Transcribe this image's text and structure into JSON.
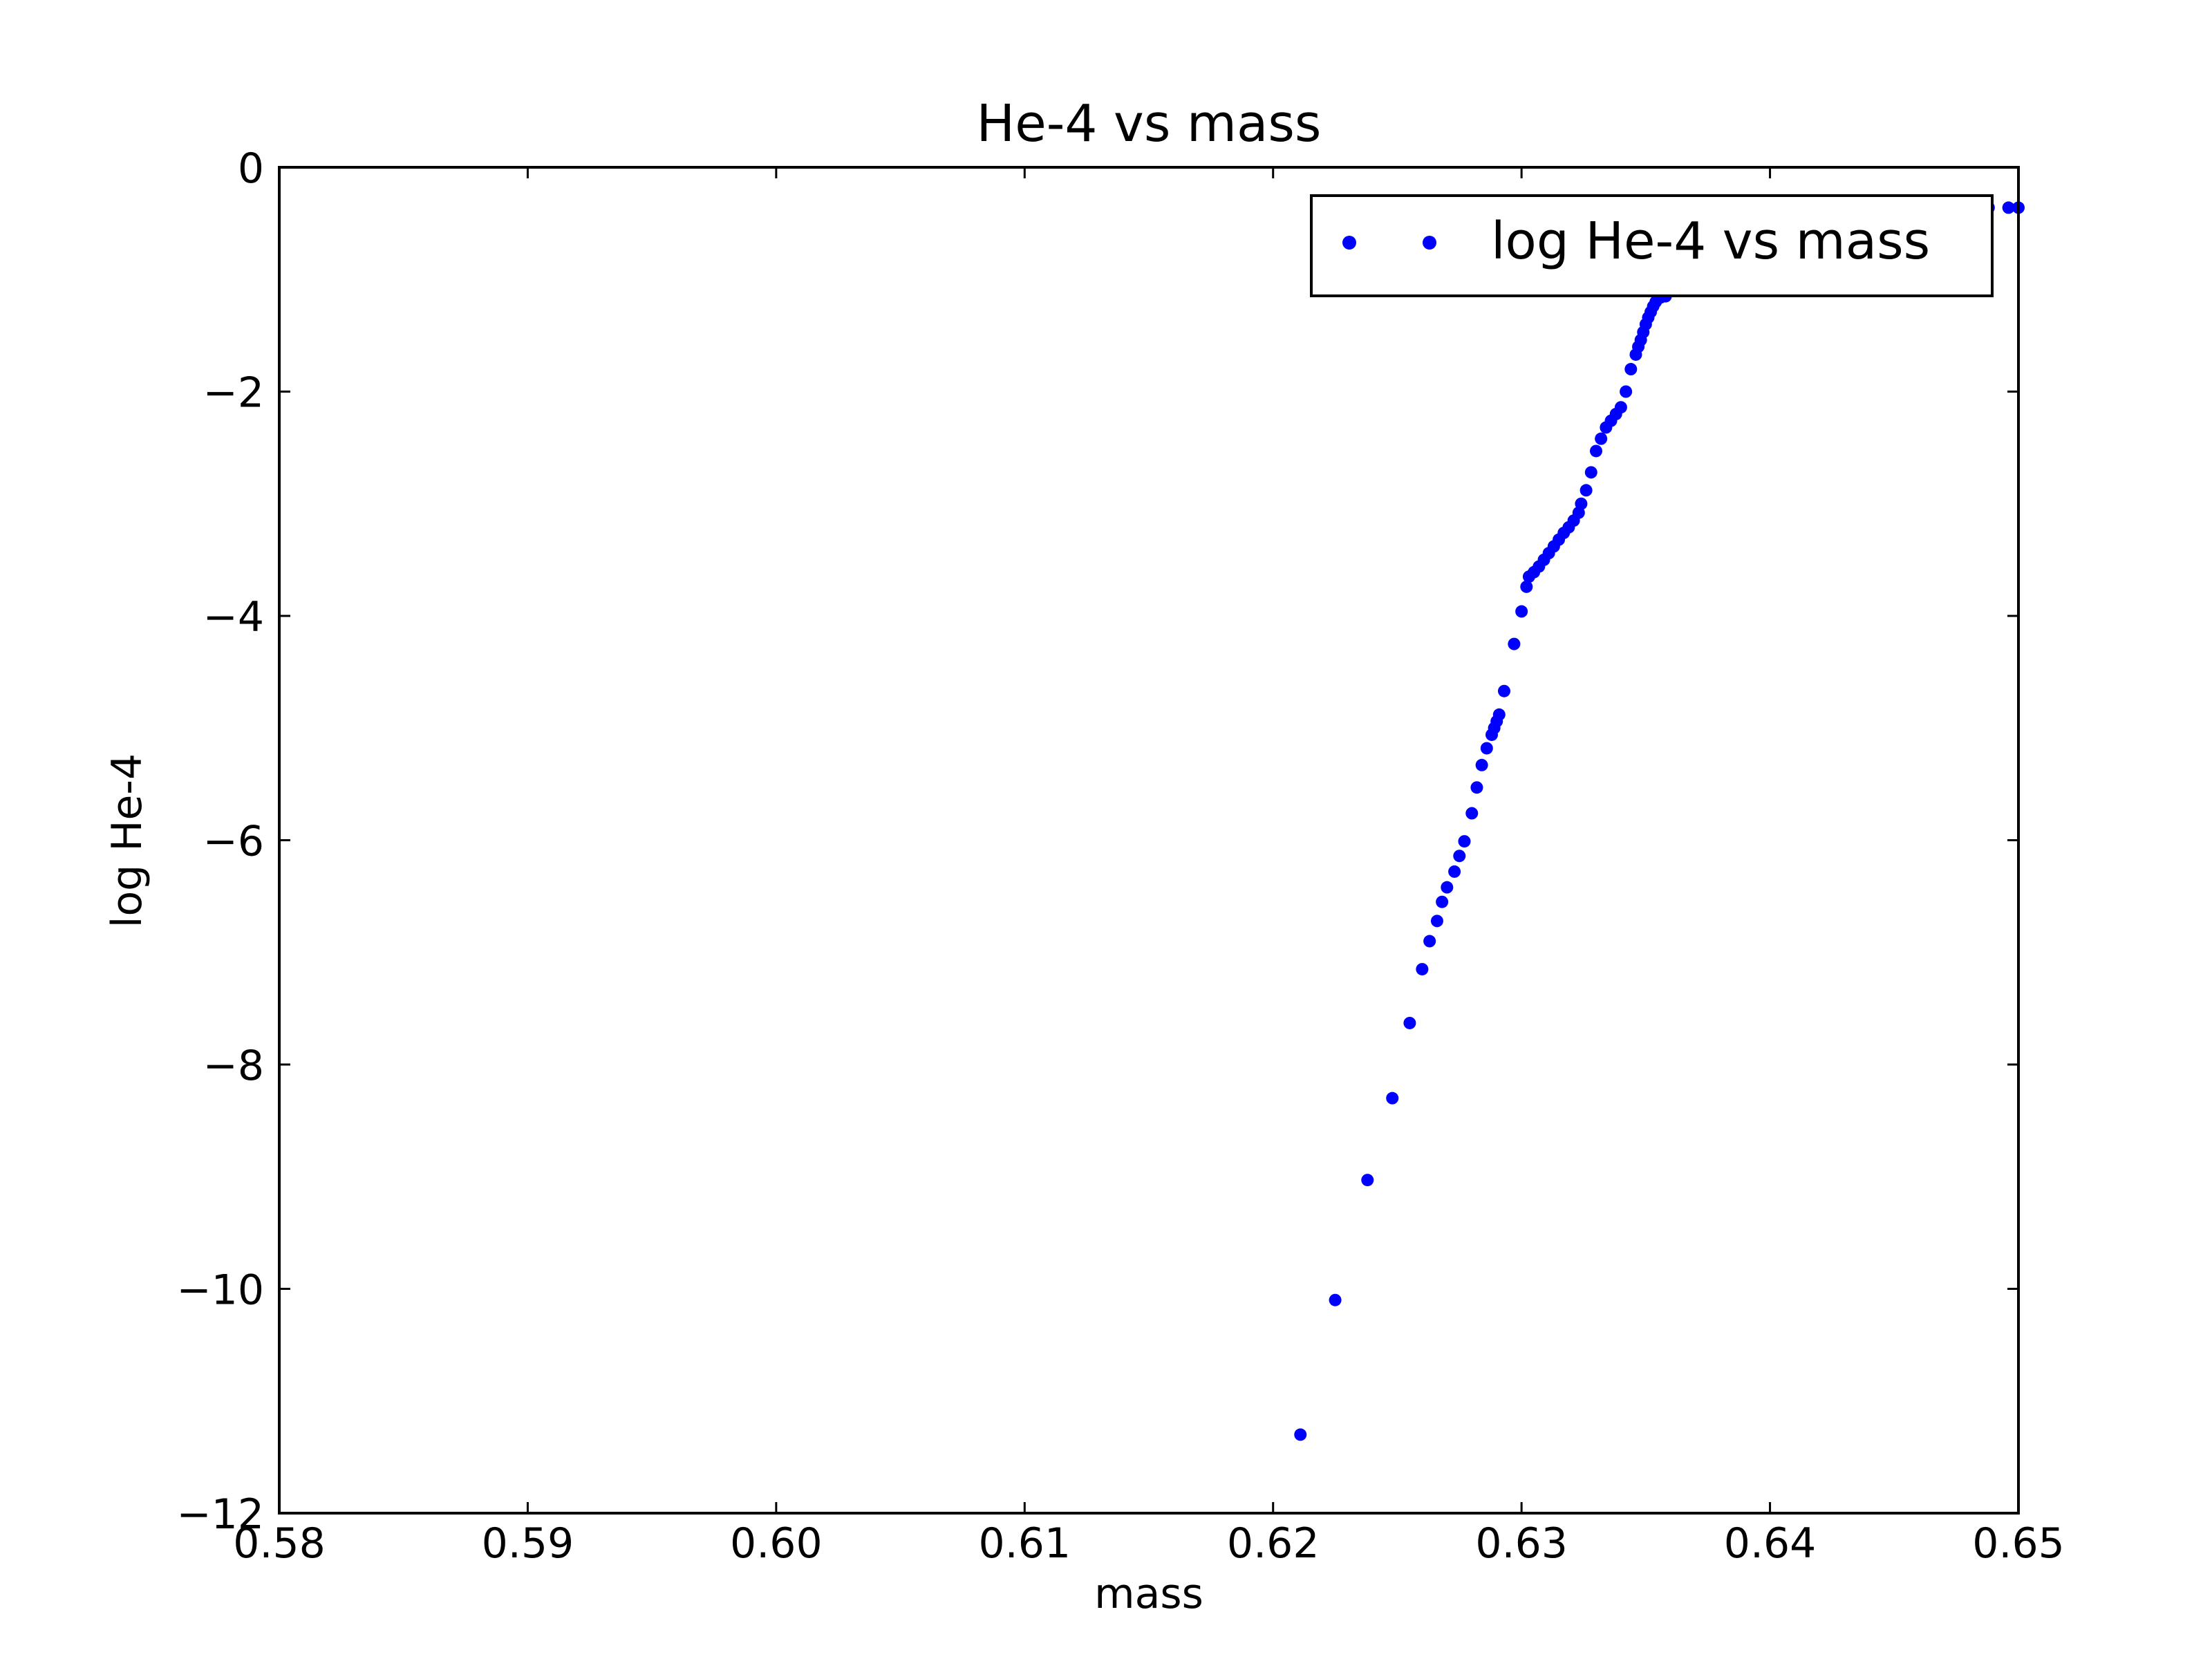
{
  "chart_data": {
    "type": "scatter",
    "title": "He-4 vs mass",
    "xlabel": "mass",
    "ylabel": "log He-4",
    "xlim": [
      0.58,
      0.65
    ],
    "ylim": [
      -12,
      0
    ],
    "xticks": [
      "0.58",
      "0.59",
      "0.60",
      "0.61",
      "0.62",
      "0.63",
      "0.64",
      "0.65"
    ],
    "yticks": [
      "0",
      "−2",
      "−4",
      "−6",
      "−8",
      "−10",
      "−12"
    ],
    "xtick_values": [
      0.58,
      0.59,
      0.6,
      0.61,
      0.62,
      0.63,
      0.64,
      0.65
    ],
    "ytick_values": [
      0,
      -2,
      -4,
      -6,
      -8,
      -10,
      -12
    ],
    "grid": false,
    "legend_position": "top-right",
    "series": [
      {
        "name": "log He-4 vs mass",
        "color": "#0000ff",
        "marker": "dot",
        "x": [
          0.6211,
          0.6225,
          0.6238,
          0.6248,
          0.6255,
          0.626,
          0.6263,
          0.6266,
          0.6268,
          0.627,
          0.6273,
          0.6275,
          0.6277,
          0.628,
          0.6282,
          0.6284,
          0.6286,
          0.6288,
          0.6289,
          0.629,
          0.6291,
          0.6293,
          0.6297,
          0.63,
          0.6302,
          0.6303,
          0.6305,
          0.6307,
          0.6309,
          0.6311,
          0.6313,
          0.6315,
          0.6317,
          0.6319,
          0.6321,
          0.6323,
          0.6324,
          0.6326,
          0.6328,
          0.633,
          0.6332,
          0.6334,
          0.6336,
          0.6338,
          0.634,
          0.6342,
          0.6344,
          0.6346,
          0.6347,
          0.6348,
          0.6349,
          0.635,
          0.6351,
          0.6352,
          0.6353,
          0.6354,
          0.6355,
          0.6356,
          0.6357,
          0.6358,
          0.636,
          0.6368,
          0.6376,
          0.6384,
          0.6392,
          0.64,
          0.6408,
          0.6416,
          0.6424,
          0.6432,
          0.644,
          0.6448,
          0.6456,
          0.6464,
          0.6472,
          0.648,
          0.6488,
          0.6496,
          0.65
        ],
        "y": [
          -11.3,
          -10.1,
          -9.03,
          -8.3,
          -7.63,
          -7.15,
          -6.9,
          -6.72,
          -6.55,
          -6.42,
          -6.28,
          -6.14,
          -6.01,
          -5.76,
          -5.53,
          -5.33,
          -5.18,
          -5.06,
          -5.0,
          -4.94,
          -4.88,
          -4.67,
          -4.25,
          -3.96,
          -3.74,
          -3.65,
          -3.61,
          -3.56,
          -3.5,
          -3.44,
          -3.38,
          -3.32,
          -3.26,
          -3.21,
          -3.15,
          -3.08,
          -3.0,
          -2.88,
          -2.72,
          -2.53,
          -2.42,
          -2.32,
          -2.26,
          -2.2,
          -2.14,
          -2.0,
          -1.8,
          -1.67,
          -1.6,
          -1.54,
          -1.47,
          -1.4,
          -1.34,
          -1.29,
          -1.24,
          -1.2,
          -1.17,
          -1.16,
          -1.15,
          -1.15,
          -0.36,
          -0.36,
          -0.36,
          -0.36,
          -0.36,
          -0.36,
          -0.36,
          -0.36,
          -0.36,
          -0.36,
          -0.36,
          -0.36,
          -0.36,
          -0.36,
          -0.36,
          -0.36,
          -0.36,
          -0.36,
          -0.36
        ]
      }
    ]
  }
}
